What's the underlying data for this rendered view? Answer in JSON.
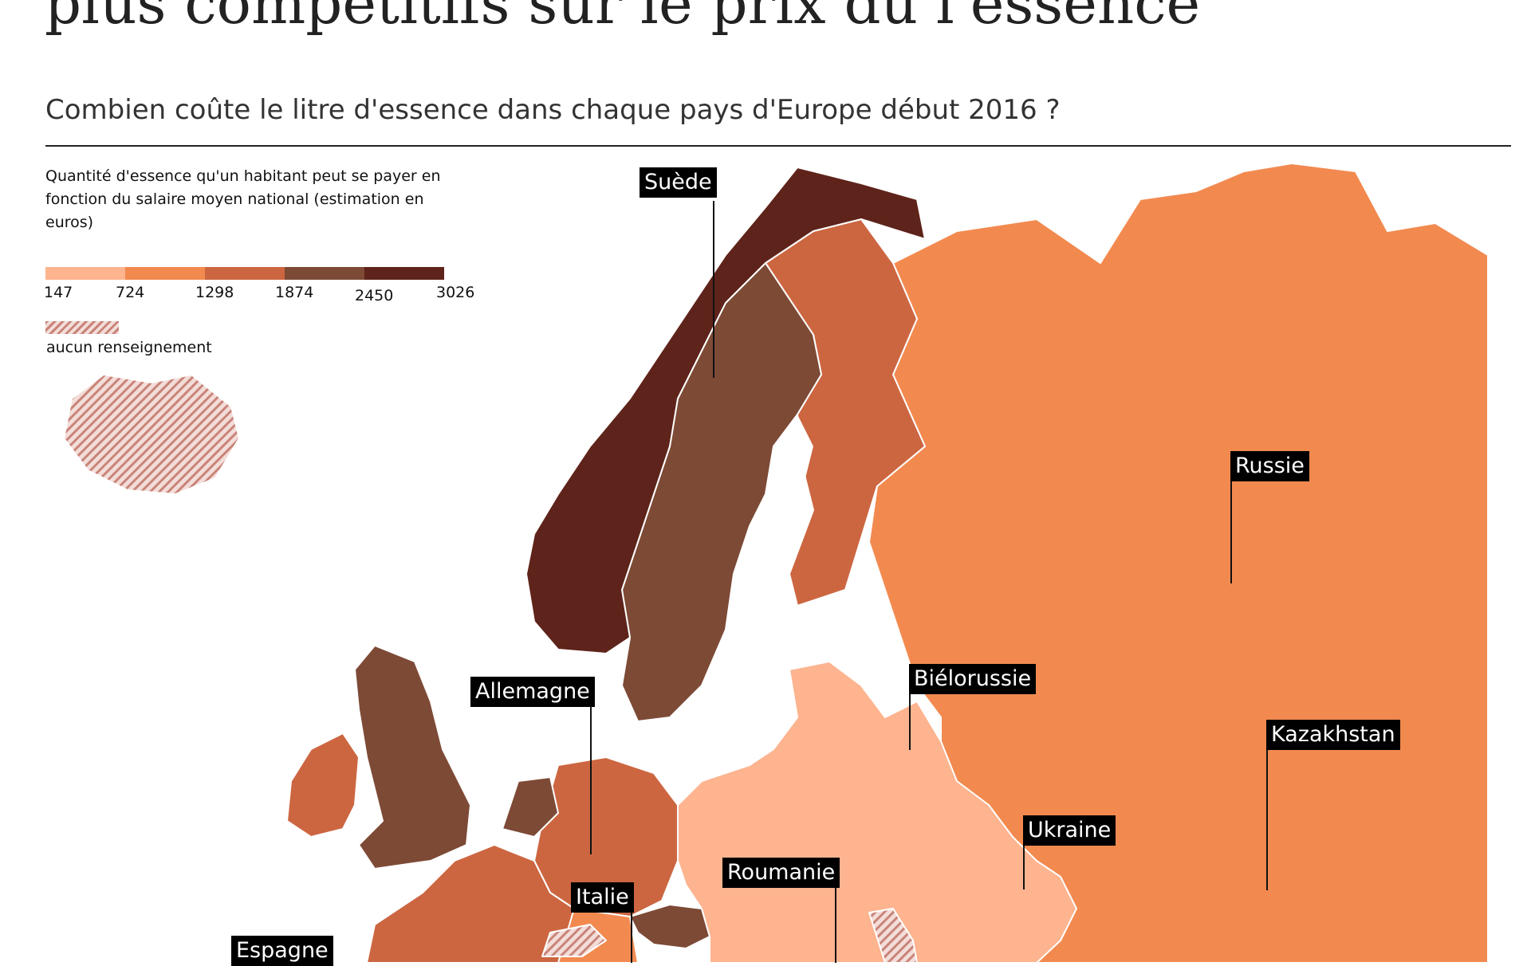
{
  "title": "plus compétitifs sur le prix du l'essence",
  "subtitle": "Combien coûte le litre d'essence dans chaque pays d'Europe début 2016 ?",
  "legend": {
    "description": "Quantité d'essence qu'un habitant peut se payer en fonction du salaire moyen national (estimation en euros)",
    "ticks": [
      "147",
      "724",
      "1298",
      "1874",
      "2450",
      "3026"
    ],
    "colors": [
      "#fdb48f",
      "#f28a50",
      "#cc6641",
      "#7d4a36",
      "#5e231a"
    ],
    "no_data_label": "aucun renseignement",
    "no_data_colors": [
      "#c9847a",
      "#f3ddd8"
    ]
  },
  "country_labels": {
    "suede": "Suède",
    "russie": "Russie",
    "bielorussie": "Biélorussie",
    "allemagne": "Allemagne",
    "kazakhstan": "Kazakhstan",
    "ukraine": "Ukraine",
    "roumanie": "Roumanie",
    "italie": "Italie",
    "espagne": "Espagne"
  },
  "sea_color": "#ffffff",
  "border_color": "#ffffff"
}
